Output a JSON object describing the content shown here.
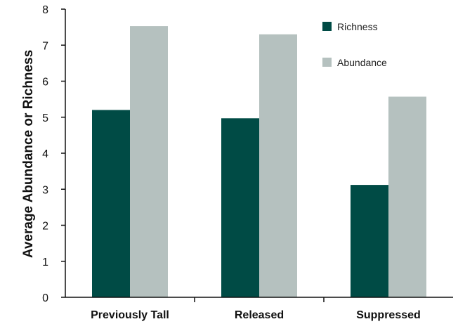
{
  "chart_data": {
    "type": "bar",
    "categories": [
      "Previously Tall",
      "Released",
      "Suppressed"
    ],
    "series": [
      {
        "name": "Richness",
        "values": [
          5.2,
          4.97,
          3.12
        ],
        "color": "#004b45"
      },
      {
        "name": "Abundance",
        "values": [
          7.53,
          7.3,
          5.57
        ],
        "color": "#b5c1bf"
      }
    ],
    "title": "",
    "xlabel": "",
    "ylabel": "Average Abundance or Richness",
    "ylim": [
      0,
      8
    ],
    "yticks": [
      "0",
      "1",
      "2",
      "3",
      "4",
      "5",
      "6",
      "7",
      "8"
    ],
    "grid": false,
    "legend_position": "top-right"
  }
}
